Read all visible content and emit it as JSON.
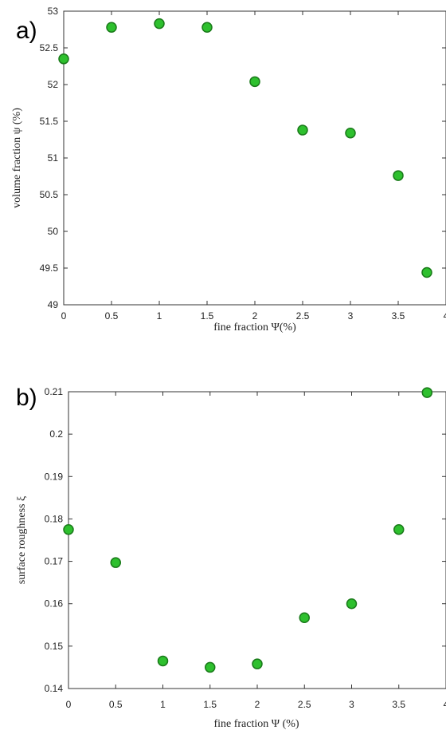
{
  "chart_data": [
    {
      "type": "scatter",
      "panel_label": "a)",
      "xlabel": "fine fraction Ψ(%)",
      "ylabel": "volume fraction ψ (%)",
      "xlim": [
        0,
        4
      ],
      "ylim": [
        49,
        53
      ],
      "xticks": [
        "0",
        "0.5",
        "1",
        "1.5",
        "2",
        "2.5",
        "3",
        "3.5",
        "4"
      ],
      "yticks": [
        "49",
        "49.5",
        "50",
        "50.5",
        "51",
        "51.5",
        "52",
        "52.5",
        "53"
      ],
      "grid": false,
      "marker_color": "#2ec02e",
      "x": [
        0,
        0.5,
        1,
        1.5,
        2,
        2.5,
        3,
        3.5,
        3.8
      ],
      "y": [
        52.35,
        52.78,
        52.83,
        52.78,
        52.04,
        51.38,
        51.34,
        50.76,
        49.44
      ]
    },
    {
      "type": "scatter",
      "panel_label": "b)",
      "xlabel": "fine fraction Ψ (%)",
      "ylabel": "surface roughness ξ",
      "xlim": [
        0,
        4
      ],
      "ylim": [
        0.14,
        0.21
      ],
      "xticks": [
        "0",
        "0.5",
        "1",
        "1.5",
        "2",
        "2.5",
        "3",
        "3.5",
        "4"
      ],
      "yticks": [
        "0.14",
        "0.15",
        "0.16",
        "0.17",
        "0.18",
        "0.19",
        "0.2",
        "0.21"
      ],
      "grid": false,
      "marker_color": "#2ec02e",
      "x": [
        0,
        0.5,
        1,
        1.5,
        2,
        2.5,
        3,
        3.5,
        3.8
      ],
      "y": [
        0.1775,
        0.1697,
        0.1465,
        0.145,
        0.1458,
        0.1567,
        0.16,
        0.1775,
        0.2098
      ]
    }
  ]
}
